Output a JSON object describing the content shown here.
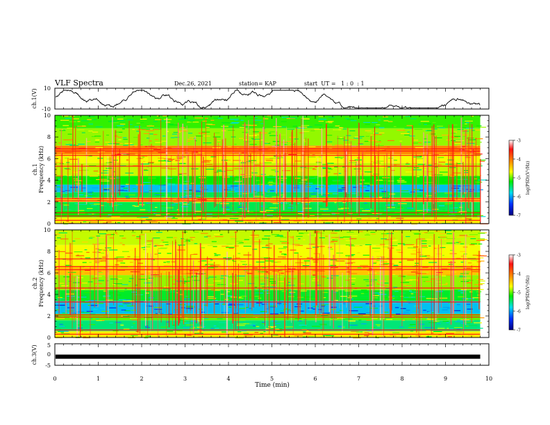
{
  "header": {
    "title": "VLF Spectra",
    "date": "Dec.26, 2021",
    "station": "station= KAP",
    "start_ut": "start  UT =   1 : 0  : 1"
  },
  "chart_data": [
    {
      "type": "line",
      "panel": "ch1-waveform",
      "ylabel": "ch.1(V)",
      "ylim": [
        -10,
        10
      ],
      "y_ticks": [
        "10",
        "-10"
      ],
      "x_range_min": [
        0,
        9.8
      ],
      "trace_color": "#000000"
    },
    {
      "type": "heatmap",
      "panel": "ch1-spectrogram",
      "ylabel_channel": "ch.1",
      "ylabel": "Frequency (kHz)",
      "ylim": [
        0,
        10
      ],
      "y_ticks": [
        "0",
        "2",
        "4",
        "6",
        "8",
        "10"
      ],
      "x_range_min": [
        0,
        9.8
      ],
      "bands": [
        {
          "from": 0.0,
          "to": 0.6,
          "level": -4.6
        },
        {
          "from": 0.6,
          "to": 1.2,
          "level": -5.2
        },
        {
          "from": 1.2,
          "to": 2.0,
          "level": -5.4
        },
        {
          "from": 2.0,
          "to": 2.4,
          "level": -4.5
        },
        {
          "from": 2.4,
          "to": 2.9,
          "level": -5.4
        },
        {
          "from": 2.9,
          "to": 3.6,
          "level": -5.9
        },
        {
          "from": 3.6,
          "to": 4.4,
          "level": -5.2
        },
        {
          "from": 4.4,
          "to": 5.6,
          "level": -4.8
        },
        {
          "from": 5.6,
          "to": 6.4,
          "level": -4.7
        },
        {
          "from": 6.4,
          "to": 7.2,
          "level": -4.1
        },
        {
          "from": 7.2,
          "to": 8.8,
          "level": -4.9
        },
        {
          "from": 8.8,
          "to": 10.0,
          "level": -5.1
        }
      ],
      "lines_khz": [
        0.3,
        0.7,
        1.0,
        2.1,
        2.3,
        5.3,
        6.3,
        6.7,
        6.9
      ],
      "colorbar": {
        "label": "log(PSD)(V²/Hz)",
        "range": [
          -7,
          -3
        ],
        "ticks": [
          "-3",
          "-4",
          "-5",
          "-6",
          "-7"
        ]
      }
    },
    {
      "type": "heatmap",
      "panel": "ch2-spectrogram",
      "ylabel_channel": "ch.2",
      "ylabel": "Frequency (kHz)",
      "ylim": [
        0,
        10
      ],
      "y_ticks": [
        "0",
        "2",
        "4",
        "6",
        "8",
        "10"
      ],
      "x_range_min": [
        0,
        9.8
      ],
      "bands": [
        {
          "from": 0.0,
          "to": 0.6,
          "level": -4.6
        },
        {
          "from": 0.6,
          "to": 1.6,
          "level": -5.5
        },
        {
          "from": 1.6,
          "to": 2.2,
          "level": -5.0
        },
        {
          "from": 2.2,
          "to": 3.4,
          "level": -5.9
        },
        {
          "from": 3.4,
          "to": 4.4,
          "level": -5.3
        },
        {
          "from": 4.4,
          "to": 5.8,
          "level": -4.9
        },
        {
          "from": 5.8,
          "to": 6.6,
          "level": -4.4
        },
        {
          "from": 6.6,
          "to": 8.6,
          "level": -4.7
        },
        {
          "from": 8.6,
          "to": 10.0,
          "level": -4.8
        }
      ],
      "lines_khz": [
        0.3,
        0.7,
        1.9,
        2.1,
        3.3,
        4.6,
        6.3,
        6.6,
        7.3
      ],
      "colorbar": {
        "label": "log(PSD)(V²/Hz)",
        "range": [
          -7,
          -3
        ],
        "ticks": [
          "-3",
          "-4",
          "-5",
          "-6",
          "-7"
        ]
      }
    },
    {
      "type": "line",
      "panel": "ch3-waveform",
      "ylabel": "ch.3(V)",
      "ylim": [
        -5,
        5
      ],
      "y_ticks": [
        "5",
        "0",
        "-5"
      ],
      "x_range_min": [
        0,
        9.8
      ],
      "trace_value": -1,
      "trace_color": "#000000"
    }
  ],
  "x_axis": {
    "label": "Time (min)",
    "xlim": [
      0,
      10
    ],
    "ticks": [
      "0",
      "1",
      "2",
      "3",
      "4",
      "5",
      "6",
      "7",
      "8",
      "9",
      "10"
    ]
  }
}
